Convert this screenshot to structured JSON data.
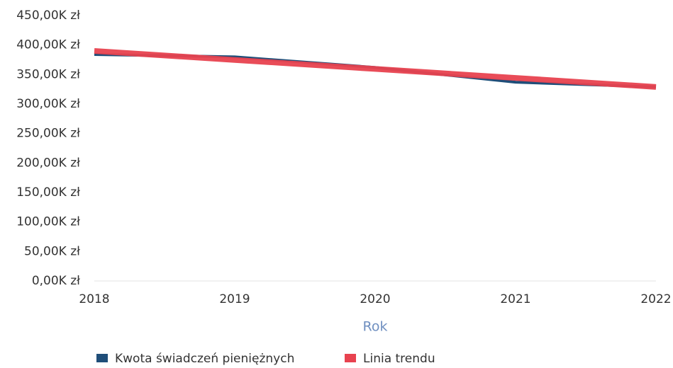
{
  "chart_data": {
    "type": "line",
    "x_label": "Rok",
    "x": [
      2018,
      2019,
      2020,
      2021,
      2022
    ],
    "xlim": [
      2018,
      2022
    ],
    "xticks": [
      2018,
      2019,
      2020,
      2021,
      2022
    ],
    "ylim": [
      0,
      450000
    ],
    "yticks": [
      {
        "value": 0,
        "label": "0,00K zł"
      },
      {
        "value": 50000,
        "label": "50,00K zł"
      },
      {
        "value": 100000,
        "label": "100,00K zł"
      },
      {
        "value": 150000,
        "label": "150,00K zł"
      },
      {
        "value": 200000,
        "label": "200,00K zł"
      },
      {
        "value": 250000,
        "label": "250,00K zł"
      },
      {
        "value": 300000,
        "label": "300,00K zł"
      },
      {
        "value": 350000,
        "label": "350,00K zł"
      },
      {
        "value": 400000,
        "label": "400,00K zł"
      },
      {
        "value": 450000,
        "label": "450,00K zł"
      }
    ],
    "grid": false,
    "legend": "bottom",
    "series": [
      {
        "name": "Kwota świadczeń pieniężnych",
        "color": "#1f4e79",
        "values": [
          384000,
          380000,
          362000,
          337000,
          329000
        ]
      },
      {
        "name": "Linia trendu",
        "color": "#e8424f",
        "values": [
          390000,
          374750,
          359500,
          344250,
          329000
        ]
      }
    ]
  }
}
